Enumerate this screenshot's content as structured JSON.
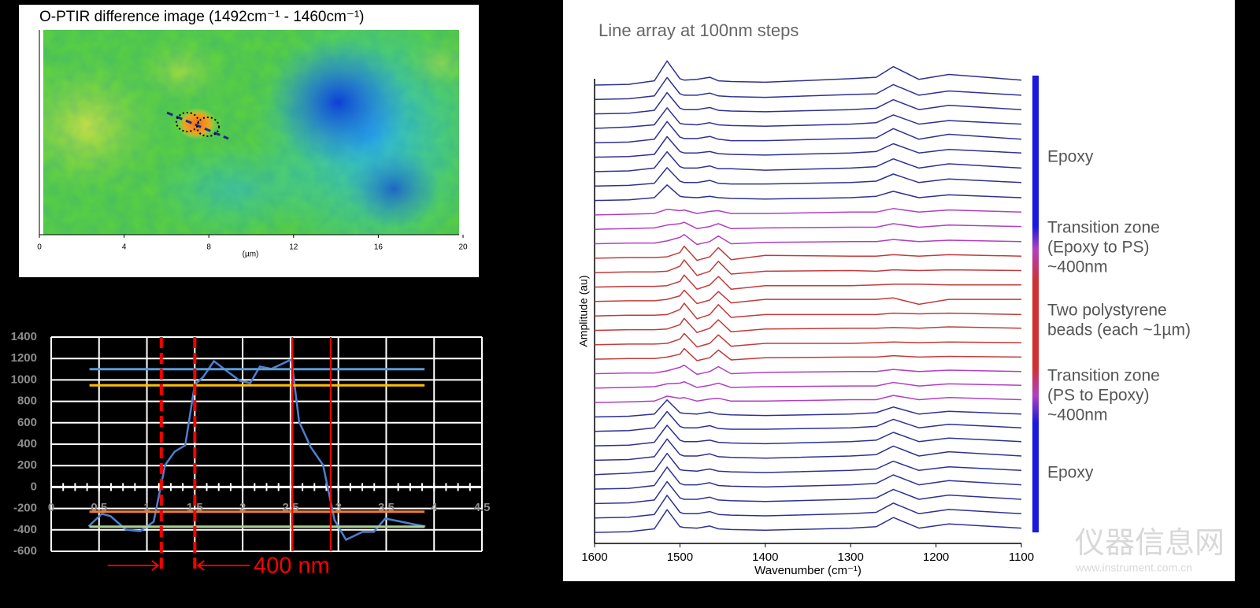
{
  "chart_data": [
    {
      "type": "image",
      "title": "O-PTIR difference image (1492cm⁻¹ - 1460cm⁻¹)",
      "xlabel": "(µm)",
      "xlim": [
        0,
        20
      ],
      "xticks": [
        0,
        4,
        8,
        12,
        16,
        20
      ]
    },
    {
      "type": "line",
      "xlim": [
        0,
        4.5
      ],
      "ylim": [
        -600,
        1400
      ],
      "xticks": [
        0,
        0.5,
        1,
        1.5,
        2,
        2.5,
        3,
        3.5,
        4,
        4.5
      ],
      "yticks": [
        -600,
        -400,
        -200,
        0,
        200,
        400,
        600,
        800,
        1000,
        1200,
        1400
      ],
      "grid": true,
      "series": [
        {
          "color": "#4f7fd0",
          "x": [
            0.39,
            0.53,
            0.62,
            0.78,
            0.93,
            1.07,
            1.19,
            1.29,
            1.4,
            1.5,
            1.59,
            1.7,
            1.85,
            1.97,
            2.08,
            2.18,
            2.3,
            2.51,
            2.59,
            2.71,
            2.84,
            2.96,
            3.08,
            3.25,
            3.37,
            3.49,
            3.66,
            3.78,
            3.91
          ],
          "values": [
            -368,
            -250,
            -272,
            -397,
            -412,
            -324,
            206,
            331,
            390,
            956,
            1030,
            1176,
            1073,
            993,
            971,
            1125,
            1103,
            1191,
            610,
            375,
            206,
            -309,
            -493,
            -419,
            -419,
            -294,
            -324,
            -346,
            -368
          ]
        },
        {
          "color": "#5b9bd5",
          "x": [
            0.4,
            3.9
          ],
          "values": [
            1100,
            1100
          ]
        },
        {
          "color": "#ffc000",
          "x": [
            0.4,
            3.9
          ],
          "values": [
            950,
            950
          ]
        },
        {
          "color": "#ed7d31",
          "x": [
            0.4,
            3.9
          ],
          "values": [
            -230,
            -230
          ]
        },
        {
          "color": "#a9d18e",
          "x": [
            0.4,
            3.9
          ],
          "values": [
            -370,
            -370
          ]
        }
      ],
      "markers": [
        1.15,
        1.5,
        2.52,
        2.92
      ],
      "marker_color": "#ff0000",
      "annotation": "400 nm"
    },
    {
      "type": "waterfall",
      "title": "Line array at 100nm steps",
      "xlabel": "Wavenumber (cm⁻¹)",
      "ylabel": "Amplitude (au)",
      "xlim": [
        1600,
        1100
      ],
      "xticks": [
        1600,
        1500,
        1400,
        1300,
        1200,
        1100
      ],
      "x": [
        1600,
        1560,
        1530,
        1515,
        1500,
        1495,
        1480,
        1465,
        1455,
        1440,
        1400,
        1300,
        1270,
        1250,
        1220,
        1185,
        1100
      ],
      "series": [
        {
          "color": "#2e3192",
          "values": [
            0,
            0.1,
            0.6,
            3.4,
            0.9,
            0.7,
            0.8,
            1.1,
            0.6,
            0.5,
            0.4,
            0.9,
            1.1,
            2.6,
            0.8,
            1.5,
            0.7
          ]
        },
        {
          "color": "#2e3192",
          "values": [
            0,
            0.1,
            0.5,
            3.1,
            0.8,
            0.6,
            0.6,
            0.9,
            0.5,
            0.4,
            0.3,
            0.7,
            0.8,
            2.1,
            0.6,
            1.2,
            0.6
          ]
        },
        {
          "color": "#2e3192",
          "values": [
            0,
            0.1,
            0.5,
            3.0,
            0.8,
            0.6,
            0.6,
            0.9,
            0.5,
            0.4,
            0.3,
            0.6,
            0.8,
            2.0,
            0.6,
            1.2,
            0.6
          ]
        },
        {
          "color": "#2e3192",
          "values": [
            0,
            0.2,
            0.5,
            2.9,
            0.7,
            0.6,
            0.5,
            0.8,
            0.5,
            0.4,
            0.3,
            0.6,
            0.8,
            1.9,
            0.6,
            1.1,
            0.6
          ]
        },
        {
          "color": "#2e3192",
          "values": [
            0,
            0.1,
            0.5,
            3.0,
            0.8,
            0.6,
            0.6,
            0.9,
            0.5,
            0.3,
            0.3,
            0.6,
            0.7,
            2.0,
            0.5,
            1.2,
            0.5
          ]
        },
        {
          "color": "#2e3192",
          "values": [
            0,
            0.1,
            0.4,
            2.9,
            0.8,
            0.6,
            0.6,
            0.8,
            0.5,
            0.4,
            0.3,
            0.6,
            0.8,
            1.9,
            0.6,
            1.1,
            0.6
          ]
        },
        {
          "color": "#2e3192",
          "values": [
            0,
            0.1,
            0.5,
            2.8,
            0.7,
            0.5,
            0.5,
            0.8,
            0.4,
            0.4,
            0.2,
            0.5,
            0.7,
            1.8,
            0.5,
            1.1,
            0.5
          ]
        },
        {
          "color": "#2e3192",
          "values": [
            0,
            0.1,
            0.4,
            2.6,
            0.7,
            0.5,
            0.5,
            0.8,
            0.4,
            0.3,
            0.3,
            0.5,
            0.7,
            1.7,
            0.5,
            1.0,
            0.5
          ]
        },
        {
          "color": "#2e3192",
          "values": [
            0,
            0.1,
            0.4,
            2.2,
            0.6,
            0.5,
            0.4,
            0.6,
            0.4,
            0.3,
            0.2,
            0.4,
            0.6,
            1.3,
            0.4,
            0.8,
            0.4
          ]
        },
        {
          "color": "#b040c0",
          "values": [
            0,
            0.1,
            0.2,
            0.8,
            0.6,
            0.7,
            0.2,
            0.5,
            0.6,
            0.2,
            0.2,
            0.4,
            0.4,
            0.9,
            0.4,
            0.7,
            0.4
          ]
        },
        {
          "color": "#b040c0",
          "values": [
            0,
            0.1,
            0.2,
            0.6,
            0.8,
            1.0,
            0.1,
            0.4,
            0.8,
            0.1,
            0.2,
            0.3,
            0.3,
            0.8,
            0.3,
            0.6,
            0.4
          ]
        },
        {
          "color": "#b040c0",
          "values": [
            0,
            0.1,
            0.1,
            0.4,
            0.9,
            1.3,
            -0.1,
            0.3,
            1.1,
            0.0,
            0.2,
            0.3,
            0.3,
            0.6,
            0.3,
            0.5,
            0.3
          ]
        },
        {
          "color": "#c23b3b",
          "values": [
            0,
            0.1,
            0.1,
            0.2,
            0.8,
            1.7,
            -0.3,
            0.2,
            1.5,
            -0.2,
            0.4,
            0.3,
            0.3,
            0.5,
            0.3,
            0.5,
            0.3
          ]
        },
        {
          "color": "#c23b3b",
          "values": [
            0,
            0.1,
            0.1,
            0.2,
            0.9,
            1.8,
            -0.4,
            0.2,
            1.6,
            -0.2,
            0.2,
            0.3,
            0.2,
            0.4,
            0.3,
            0.4,
            0.3
          ]
        },
        {
          "color": "#c23b3b",
          "values": [
            0,
            0.1,
            0.1,
            0.2,
            0.8,
            1.7,
            -0.3,
            0.3,
            1.5,
            -0.3,
            0.2,
            0.2,
            0.3,
            0.4,
            0.4,
            0.3,
            0.3
          ]
        },
        {
          "color": "#c23b3b",
          "values": [
            0,
            0.1,
            0.1,
            0.3,
            0.8,
            1.6,
            -0.3,
            0.2,
            1.4,
            -0.2,
            0.3,
            0.3,
            0.3,
            0.5,
            -0.4,
            0.3,
            0.3
          ]
        },
        {
          "color": "#c23b3b",
          "values": [
            0,
            0.1,
            0.1,
            0.2,
            0.9,
            1.8,
            -0.4,
            0.2,
            1.6,
            -0.2,
            0.2,
            0.2,
            0.2,
            0.4,
            0.3,
            0.4,
            0.2
          ]
        },
        {
          "color": "#c23b3b",
          "values": [
            0,
            0.1,
            0.1,
            0.2,
            0.8,
            1.7,
            -0.3,
            0.3,
            1.5,
            -0.2,
            0.2,
            0.3,
            0.3,
            0.4,
            0.3,
            0.5,
            0.3
          ]
        },
        {
          "color": "#c23b3b",
          "values": [
            0,
            0.1,
            0.1,
            0.2,
            0.8,
            1.6,
            -0.3,
            0.2,
            1.4,
            -0.2,
            0.2,
            0.2,
            0.3,
            0.4,
            0.3,
            0.4,
            0.3
          ]
        },
        {
          "color": "#c23b3b",
          "values": [
            0,
            0.1,
            0.1,
            0.3,
            0.7,
            1.5,
            -0.2,
            0.2,
            1.3,
            -0.1,
            0.2,
            0.3,
            0.3,
            0.5,
            0.3,
            0.4,
            0.3
          ]
        },
        {
          "color": "#b040c0",
          "values": [
            0,
            0.1,
            0.1,
            0.4,
            0.9,
            1.2,
            -0.1,
            0.3,
            1.0,
            0.0,
            0.2,
            0.3,
            0.3,
            0.6,
            0.3,
            0.5,
            0.3
          ]
        },
        {
          "color": "#b040c0",
          "values": [
            0,
            0.1,
            0.2,
            0.6,
            0.7,
            0.9,
            0.1,
            0.4,
            0.7,
            0.1,
            0.2,
            0.3,
            0.3,
            0.8,
            0.3,
            0.6,
            0.4
          ]
        },
        {
          "color": "#b040c0",
          "values": [
            0,
            0.1,
            0.2,
            0.9,
            0.6,
            0.7,
            0.2,
            0.5,
            0.6,
            0.2,
            0.2,
            0.4,
            0.4,
            1.0,
            0.4,
            0.7,
            0.4
          ]
        },
        {
          "color": "#2e3192",
          "values": [
            0,
            0.1,
            0.4,
            2.4,
            0.6,
            0.5,
            0.4,
            0.7,
            0.4,
            0.3,
            0.2,
            0.4,
            0.6,
            1.4,
            0.4,
            0.8,
            0.4
          ]
        },
        {
          "color": "#2e3192",
          "values": [
            0,
            0.1,
            0.5,
            2.8,
            0.7,
            0.5,
            0.5,
            0.8,
            0.4,
            0.3,
            0.3,
            0.5,
            0.7,
            1.7,
            0.5,
            1.0,
            0.5
          ]
        },
        {
          "color": "#2e3192",
          "values": [
            0,
            0.1,
            0.5,
            2.9,
            0.8,
            0.6,
            0.6,
            0.8,
            0.5,
            0.4,
            0.3,
            0.6,
            0.8,
            1.9,
            0.6,
            1.1,
            0.6
          ]
        },
        {
          "color": "#2e3192",
          "values": [
            0,
            0.1,
            0.5,
            3.0,
            0.8,
            0.6,
            0.6,
            0.9,
            0.5,
            0.4,
            0.3,
            0.6,
            0.8,
            2.0,
            0.6,
            1.2,
            0.6
          ]
        },
        {
          "color": "#2e3192",
          "values": [
            0,
            0.2,
            0.5,
            3.0,
            0.7,
            0.6,
            0.5,
            0.8,
            0.5,
            0.4,
            0.3,
            0.6,
            0.8,
            1.9,
            0.6,
            1.1,
            0.6
          ]
        },
        {
          "color": "#2e3192",
          "values": [
            0,
            0.1,
            0.5,
            3.1,
            0.8,
            0.6,
            0.6,
            0.9,
            0.5,
            0.4,
            0.3,
            0.6,
            0.8,
            2.0,
            0.6,
            1.2,
            0.6
          ]
        },
        {
          "color": "#2e3192",
          "values": [
            0,
            0.1,
            0.5,
            3.1,
            0.8,
            0.6,
            0.6,
            0.9,
            0.5,
            0.4,
            0.3,
            0.6,
            0.8,
            2.0,
            0.6,
            1.2,
            0.6
          ]
        },
        {
          "color": "#2e3192",
          "values": [
            0,
            0.1,
            0.5,
            3.2,
            0.8,
            0.6,
            0.6,
            0.9,
            0.5,
            0.4,
            0.3,
            0.6,
            0.8,
            2.1,
            0.6,
            1.2,
            0.6
          ]
        },
        {
          "color": "#2e3192",
          "values": [
            0,
            0.1,
            0.5,
            3.2,
            0.8,
            0.7,
            0.6,
            0.9,
            0.5,
            0.4,
            0.3,
            0.6,
            0.8,
            2.1,
            0.6,
            1.2,
            0.6
          ]
        }
      ],
      "annotations": [
        [
          "Epoxy"
        ],
        [
          "Transition zone",
          "(Epoxy to PS)",
          "~400nm"
        ],
        [
          "Two polystyrene",
          "beads (each ~1µm)"
        ],
        [
          "Transition zone",
          "(PS to Epoxy)",
          "~400nm"
        ],
        [
          "Epoxy"
        ]
      ]
    }
  ],
  "watermark": {
    "text": "仪器信息网",
    "url": "www.instrument.com.cn"
  }
}
